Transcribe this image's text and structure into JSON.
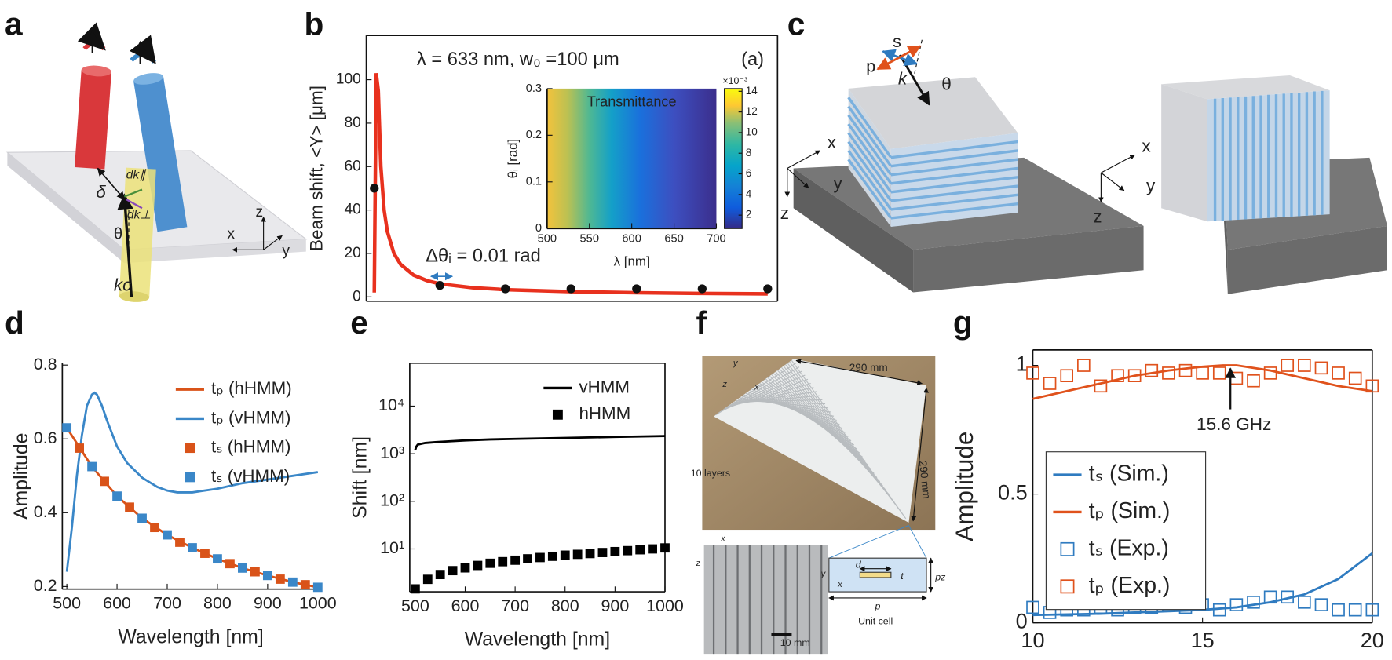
{
  "panels": {
    "labels": [
      "a",
      "b",
      "c",
      "d",
      "e",
      "f",
      "g"
    ],
    "a": [
      "δ",
      "dk∥",
      "dk⊥",
      "θ",
      "kc",
      "z",
      "x",
      "y"
    ],
    "c": [
      "s",
      "p",
      "k",
      "θ",
      "x",
      "y",
      "z",
      "x",
      "y",
      "z"
    ],
    "f": [
      "290 mm",
      "290 mm",
      "10 layers",
      "y",
      "z",
      "x",
      "x",
      "z",
      "10 mm",
      "d",
      "t",
      "pz",
      "y",
      "x",
      "p",
      "Unit cell"
    ]
  },
  "chart_data": [
    {
      "type": "line",
      "y_label": "Beam shift, <Y> [μm]",
      "xlim": [
        -0.00122,
        0.0615
      ],
      "ylim": [
        -2,
        120.4
      ],
      "yticks": [
        0,
        20,
        40,
        60,
        80,
        100
      ],
      "annotations": [
        "λ = 633 nm, w₀ =100 μm",
        "(a)",
        "Δθᵢ = 0.01 rad"
      ],
      "series": [
        {
          "kind": "line",
          "color": "#e8311e",
          "x": [
            0,
            0.0003,
            0.0006,
            0.001,
            0.0015,
            0.002,
            0.003,
            0.004,
            0.006,
            0.008,
            0.01,
            0.015,
            0.02,
            0.03,
            0.04,
            0.05,
            0.06
          ],
          "values": [
            2,
            103,
            95,
            60,
            40,
            30,
            20,
            15,
            10,
            7.5,
            6,
            4.2,
            3.3,
            2.4,
            1.9,
            1.6,
            1.4
          ]
        },
        {
          "kind": "scatter",
          "marker": "circle",
          "color": "#111111",
          "x": [
            0,
            0.01,
            0.02,
            0.03,
            0.04,
            0.05,
            0.06
          ],
          "values": [
            50,
            5.3,
            3.7,
            3.7,
            3.7,
            3.7,
            3.7
          ]
        }
      ]
    },
    {
      "type": "heatmap",
      "title": "Transmittance",
      "x_label": "λ [nm]",
      "y_label": "θᵢ [rad]",
      "xlim": [
        500,
        700
      ],
      "ylim": [
        0,
        0.3
      ],
      "xticks": [
        500,
        550,
        600,
        650,
        700
      ],
      "yticks": [
        0,
        0.1,
        0.2,
        0.3
      ],
      "clim": [
        0.7,
        14.26
      ],
      "cticks": [
        2,
        4,
        6,
        8,
        10,
        12,
        14
      ],
      "colorbar_exponent": "×10⁻³"
    },
    {
      "type": "line",
      "x_label": "Wavelength [nm]",
      "y_label": "Amplitude",
      "xlim": [
        491,
        1003
      ],
      "ylim": [
        0.193,
        0.805
      ],
      "xticks": [
        500,
        600,
        700,
        800,
        900,
        1000
      ],
      "yticks": [
        0.2,
        0.4,
        0.6,
        0.8
      ],
      "legend": "top-right",
      "series": [
        {
          "name": "tₚ (hHMM)",
          "kind": "line",
          "color": "#d95319",
          "x": [
            500,
            550,
            600,
            650,
            700,
            750,
            800,
            850,
            900,
            950,
            1000
          ],
          "values": [
            0.63,
            0.525,
            0.445,
            0.385,
            0.34,
            0.305,
            0.275,
            0.25,
            0.23,
            0.212,
            0.198
          ]
        },
        {
          "name": "tₚ (vHMM)",
          "kind": "line",
          "color": "#3a87c8",
          "x": [
            500,
            510,
            520,
            530,
            540,
            550,
            555,
            560,
            570,
            580,
            600,
            620,
            650,
            680,
            700,
            720,
            750,
            800,
            850,
            900,
            950,
            1000
          ],
          "values": [
            0.24,
            0.36,
            0.5,
            0.61,
            0.69,
            0.72,
            0.725,
            0.72,
            0.69,
            0.65,
            0.58,
            0.535,
            0.495,
            0.47,
            0.46,
            0.455,
            0.455,
            0.465,
            0.48,
            0.49,
            0.5,
            0.51
          ]
        },
        {
          "name": "tₛ (hHMM)",
          "kind": "scatter",
          "marker": "square",
          "color": "#d95319",
          "x": [
            525,
            575,
            625,
            675,
            725,
            775,
            825,
            875,
            925,
            975
          ],
          "values": [
            0.575,
            0.485,
            0.415,
            0.36,
            0.32,
            0.29,
            0.262,
            0.24,
            0.22,
            0.205
          ]
        },
        {
          "name": "tₛ (vHMM)",
          "kind": "scatter",
          "marker": "square",
          "color": "#3a87c8",
          "x": [
            500,
            550,
            600,
            650,
            700,
            750,
            800,
            850,
            900,
            950,
            1000
          ],
          "values": [
            0.63,
            0.525,
            0.445,
            0.385,
            0.34,
            0.305,
            0.275,
            0.25,
            0.23,
            0.212,
            0.198
          ]
        }
      ]
    },
    {
      "type": "line",
      "x_label": "Wavelength [nm]",
      "y_label": "Shift [nm]",
      "log_y": true,
      "xlim": [
        489,
        1000
      ],
      "ylim": [
        1.26,
        79433
      ],
      "xticks": [
        500,
        600,
        700,
        800,
        900,
        1000
      ],
      "yticks": [
        {
          "value": 10,
          "label": "10¹"
        },
        {
          "value": 100,
          "label": "10²"
        },
        {
          "value": 1000,
          "label": "10³"
        },
        {
          "value": 10000,
          "label": "10⁴"
        }
      ],
      "legend": "top-right",
      "series": [
        {
          "name": "vHMM",
          "kind": "line",
          "color": "#000000",
          "x": [
            500,
            502,
            505,
            510,
            520,
            540,
            560,
            600,
            650,
            700,
            800,
            900,
            1000
          ],
          "values": [
            1200,
            1400,
            1550,
            1600,
            1680,
            1750,
            1800,
            1900,
            2000,
            2050,
            2150,
            2250,
            2350
          ]
        },
        {
          "name": "hHMM",
          "kind": "scatter",
          "marker": "square",
          "color": "#000000",
          "x": [
            500,
            525,
            550,
            575,
            600,
            625,
            650,
            675,
            700,
            725,
            750,
            775,
            800,
            825,
            850,
            875,
            900,
            925,
            950,
            975,
            1000
          ],
          "values": [
            1.45,
            2.3,
            2.9,
            3.5,
            4.0,
            4.5,
            5.0,
            5.4,
            5.8,
            6.2,
            6.6,
            7.0,
            7.4,
            7.7,
            8.0,
            8.4,
            8.8,
            9.2,
            9.6,
            10.0,
            10.5
          ]
        }
      ]
    },
    {
      "type": "line",
      "y_label": "Amplitude",
      "xlim": [
        10,
        20
      ],
      "ylim": [
        0,
        1.06
      ],
      "xticks": [
        10,
        15,
        20
      ],
      "yticks": [
        0,
        0.5,
        1
      ],
      "legend": "bottom-left",
      "legend_box": true,
      "annotations": [
        "15.6 GHz"
      ],
      "series": [
        {
          "name": "tₛ (Sim.)",
          "kind": "line",
          "color": "#2f7bc0",
          "x": [
            10,
            12,
            14,
            15,
            16,
            17,
            18,
            19,
            20
          ],
          "values": [
            0.03,
            0.035,
            0.045,
            0.05,
            0.06,
            0.08,
            0.11,
            0.17,
            0.27
          ]
        },
        {
          "name": "tₚ (Sim.)",
          "kind": "line",
          "color": "#e0521c",
          "x": [
            10,
            11,
            12,
            13,
            14,
            15,
            15.6,
            16,
            17,
            18,
            19,
            20
          ],
          "values": [
            0.87,
            0.9,
            0.93,
            0.96,
            0.98,
            0.995,
            1.0,
            1.0,
            0.98,
            0.95,
            0.92,
            0.9
          ]
        },
        {
          "name": "tₛ (Exp.)",
          "kind": "scatter",
          "marker": "square-open",
          "color": "#2f7bc0",
          "x": [
            10,
            10.5,
            11,
            11.5,
            12,
            12.5,
            13,
            13.5,
            14,
            14.5,
            15,
            15.5,
            16,
            16.5,
            17,
            17.5,
            18,
            18.5,
            19,
            19.5,
            20
          ],
          "values": [
            0.06,
            0.04,
            0.05,
            0.05,
            0.06,
            0.05,
            0.06,
            0.06,
            0.07,
            0.06,
            0.07,
            0.05,
            0.07,
            0.08,
            0.1,
            0.1,
            0.08,
            0.07,
            0.05,
            0.05,
            0.05
          ]
        },
        {
          "name": "tₚ (Exp.)",
          "kind": "scatter",
          "marker": "square-open",
          "color": "#e0521c",
          "x": [
            10,
            10.5,
            11,
            11.5,
            12,
            12.5,
            13,
            13.5,
            14,
            14.5,
            15,
            15.5,
            16,
            16.5,
            17,
            17.5,
            18,
            18.5,
            19,
            19.5,
            20
          ],
          "values": [
            0.97,
            0.93,
            0.96,
            1.0,
            0.92,
            0.96,
            0.96,
            0.98,
            0.97,
            0.98,
            0.97,
            0.97,
            0.95,
            0.94,
            0.97,
            1.0,
            1.0,
            0.99,
            0.97,
            0.95,
            0.92
          ]
        }
      ]
    }
  ]
}
